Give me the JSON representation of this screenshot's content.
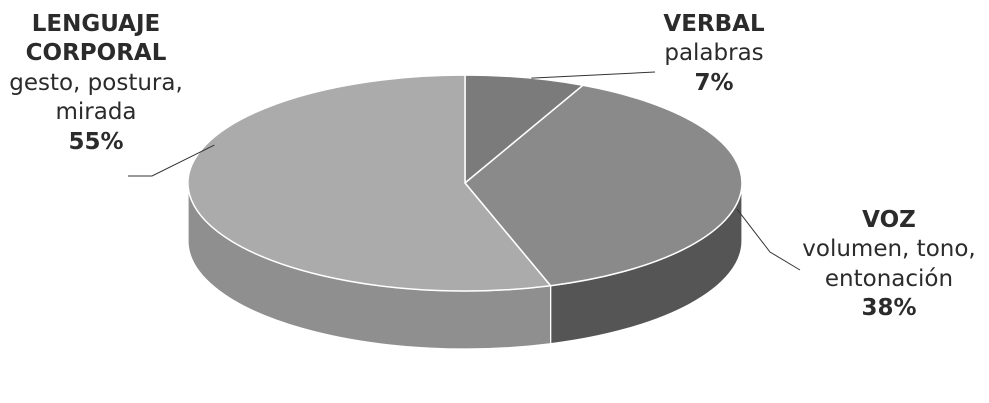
{
  "chart_data": {
    "type": "pie",
    "style": "3d",
    "palette": "grayscale",
    "slices": [
      {
        "name": "VERBAL",
        "description": "palabras",
        "value": 7,
        "value_label": "7%",
        "color_top": "#7b7b7b",
        "color_side": "#5c5c5c"
      },
      {
        "name": "VOZ",
        "description": "volumen, tono, entonación",
        "desc_lines": [
          "volumen, tono,",
          "entonación"
        ],
        "value": 38,
        "value_label": "38%",
        "color_top": "#8a8a8a",
        "color_side": "#555555"
      },
      {
        "name": "LENGUAJE CORPORAL",
        "name_lines": [
          "LENGUAJE",
          "CORPORAL"
        ],
        "description": "gesto, postura, mirada",
        "desc_lines": [
          "gesto, postura,",
          "mirada"
        ],
        "value": 55,
        "value_label": "55%",
        "color_top": "#ababab",
        "color_side": "#8f8f8f"
      }
    ]
  }
}
